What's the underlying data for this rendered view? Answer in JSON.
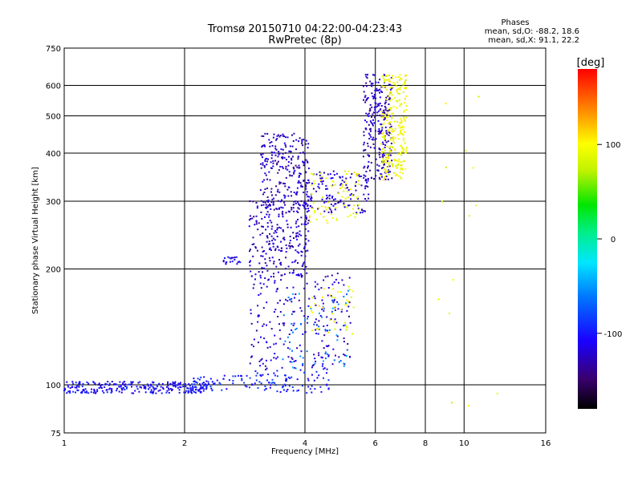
{
  "chart_data": {
    "type": "scatter",
    "title": "Tromsø 20150710 04:22:00-04:23:43",
    "subtitle": "RwPretec (8p)",
    "xlabel": "Frequency [MHz]",
    "ylabel": "Stationary phase Virtual Height [km]",
    "x_scale": "log",
    "y_scale": "log",
    "xlim": [
      1,
      16
    ],
    "ylim": [
      75,
      750
    ],
    "x_ticks": [
      1,
      2,
      4,
      6,
      8,
      10,
      16
    ],
    "x_tick_labels": [
      "1",
      "2",
      "4",
      "6",
      "8",
      "10",
      "16"
    ],
    "y_ticks": [
      75,
      100,
      200,
      300,
      400,
      500,
      600,
      750
    ],
    "y_tick_labels": [
      "75",
      "100",
      "200",
      "300",
      "400",
      "500",
      "600",
      "750"
    ],
    "grid": true,
    "stats": {
      "heading": "Phases",
      "line_o": "mean, sd,O: -88.2, 18.6",
      "line_x": "mean, sd,X:  91.1, 22.2"
    },
    "colorbar": {
      "label": "[deg]",
      "range": [
        -180,
        180
      ],
      "ticks": [
        100,
        0,
        -100
      ],
      "tick_labels": [
        "100",
        "0",
        "-100"
      ]
    },
    "point_groups": [
      {
        "x_range": [
          1.0,
          2.3
        ],
        "h_range": [
          95,
          102
        ],
        "phase": -105,
        "count": 260
      },
      {
        "x_range": [
          2.0,
          3.9
        ],
        "h_range": [
          96,
          106
        ],
        "phase": -95,
        "count": 90
      },
      {
        "x_range": [
          2.5,
          2.8
        ],
        "h_range": [
          205,
          215
        ],
        "phase": -110,
        "count": 20
      },
      {
        "x_range": [
          2.9,
          4.1
        ],
        "h_range": [
          190,
          300
        ],
        "phase": -125,
        "count": 240
      },
      {
        "x_range": [
          3.1,
          4.1
        ],
        "h_range": [
          280,
          450
        ],
        "phase": -125,
        "count": 260
      },
      {
        "x_range": [
          4.0,
          5.8
        ],
        "h_range": [
          280,
          360
        ],
        "phase": -120,
        "count": 130
      },
      {
        "x_range": [
          5.6,
          6.6
        ],
        "h_range": [
          340,
          640
        ],
        "phase": -125,
        "count": 260
      },
      {
        "x_range": [
          6.2,
          7.2
        ],
        "h_range": [
          340,
          640
        ],
        "phase": 95,
        "count": 260
      },
      {
        "x_range": [
          4.1,
          5.5
        ],
        "h_range": [
          260,
          360
        ],
        "phase": 95,
        "count": 80
      },
      {
        "x_range": [
          2.9,
          5.2
        ],
        "h_range": [
          110,
          195
        ],
        "phase": -120,
        "count": 220
      },
      {
        "x_range": [
          3.5,
          5.2
        ],
        "h_range": [
          110,
          180
        ],
        "phase": -60,
        "count": 60
      },
      {
        "x_range": [
          4.1,
          5.3
        ],
        "h_range": [
          135,
          180
        ],
        "phase": 95,
        "count": 40
      },
      {
        "x_range": [
          3.0,
          4.6
        ],
        "h_range": [
          95,
          110
        ],
        "phase": -100,
        "count": 50
      },
      {
        "x_range": [
          8.2,
          13.0
        ],
        "h_range": [
          80,
          600
        ],
        "phase": 90,
        "count": 14
      }
    ]
  }
}
